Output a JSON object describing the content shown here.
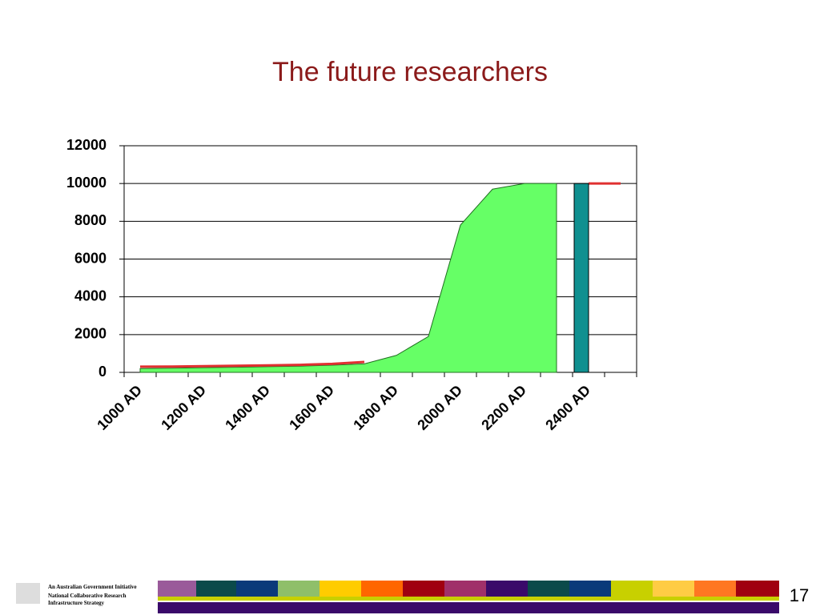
{
  "chart_data": {
    "type": "area",
    "title": "The future researchers",
    "categories": [
      "1000 AD",
      null,
      "1200 AD",
      null,
      "1400 AD",
      null,
      "1600 AD",
      null,
      "1800 AD",
      null,
      "2000 AD",
      null,
      "2200 AD",
      null,
      "2400 AD",
      null
    ],
    "series": [
      {
        "type": "area",
        "color": "#66ff66",
        "values": [
          200,
          220,
          250,
          270,
          300,
          330,
          380,
          450,
          900,
          1900,
          7800,
          9700,
          10000,
          10000,
          null,
          null
        ]
      },
      {
        "type": "line",
        "color": "#e03030",
        "values": [
          300,
          310,
          330,
          350,
          370,
          400,
          450,
          550,
          null,
          null,
          null,
          null,
          null,
          null,
          10000,
          10000
        ]
      },
      {
        "type": "bar",
        "color": "#109090",
        "values": [
          null,
          null,
          null,
          null,
          null,
          null,
          null,
          null,
          null,
          null,
          null,
          null,
          null,
          null,
          10000,
          null
        ]
      }
    ],
    "ylim": [
      0,
      12000
    ],
    "yticks": [
      0,
      2000,
      4000,
      6000,
      8000,
      10000,
      12000
    ],
    "grid": true
  },
  "footer": {
    "org_line1": "An Australian Government Initiative",
    "org_line2": "National Collaborative Research",
    "org_line3": "Infrastructure Strategy",
    "page_number": "17"
  }
}
